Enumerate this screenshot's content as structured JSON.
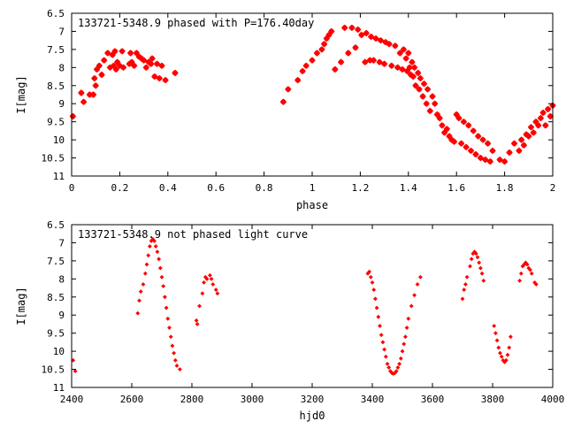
{
  "colors": {
    "marker": "#ff0000",
    "axis": "#000000",
    "background": "#ffffff"
  },
  "chart_data": [
    {
      "type": "scatter",
      "title": "133721-5348.9 phased with P=176.40day",
      "xlabel": "phase",
      "ylabel": "I[mag]",
      "xlim": [
        0,
        2
      ],
      "ylim": [
        11,
        6.5
      ],
      "y_inverted": true,
      "grid": false,
      "marker": "filled-star",
      "xticks": [
        0,
        0.2,
        0.4,
        0.6,
        0.8,
        1,
        1.2,
        1.4,
        1.6,
        1.8,
        2
      ],
      "xtick_labels": [
        "0",
        "0.2",
        "0.4",
        "0.6",
        "0.8",
        "1",
        "1.2",
        "1.4",
        "1.6",
        "1.8",
        "2"
      ],
      "yticks": [
        6.5,
        7,
        7.5,
        8,
        8.5,
        9,
        9.5,
        10,
        10.5,
        11
      ],
      "ytick_labels": [
        "6.5",
        "7",
        "7.5",
        "8",
        "8.5",
        "9",
        "9.5",
        "10",
        "10.5",
        "11"
      ],
      "series": [
        {
          "points": [
            [
              0.005,
              9.35
            ],
            [
              0.04,
              8.7
            ],
            [
              0.05,
              8.95
            ],
            [
              0.075,
              8.75
            ],
            [
              0.09,
              8.75
            ],
            [
              0.095,
              8.3
            ],
            [
              0.1,
              8.5
            ],
            [
              0.105,
              8.05
            ],
            [
              0.115,
              7.95
            ],
            [
              0.125,
              8.2
            ],
            [
              0.135,
              7.8
            ],
            [
              0.15,
              7.6
            ],
            [
              0.16,
              8.0
            ],
            [
              0.17,
              7.65
            ],
            [
              0.175,
              7.95
            ],
            [
              0.18,
              7.55
            ],
            [
              0.185,
              8.05
            ],
            [
              0.19,
              7.85
            ],
            [
              0.2,
              7.95
            ],
            [
              0.21,
              7.55
            ],
            [
              0.215,
              8.0
            ],
            [
              0.24,
              7.9
            ],
            [
              0.245,
              7.6
            ],
            [
              0.25,
              7.85
            ],
            [
              0.26,
              7.95
            ],
            [
              0.27,
              7.6
            ],
            [
              0.28,
              7.7
            ],
            [
              0.29,
              7.75
            ],
            [
              0.3,
              7.8
            ],
            [
              0.31,
              8.0
            ],
            [
              0.32,
              7.85
            ],
            [
              0.33,
              7.9
            ],
            [
              0.335,
              7.75
            ],
            [
              0.345,
              8.25
            ],
            [
              0.355,
              7.9
            ],
            [
              0.365,
              8.3
            ],
            [
              0.375,
              7.95
            ],
            [
              0.39,
              8.35
            ],
            [
              0.43,
              8.15
            ],
            [
              0.88,
              8.95
            ],
            [
              0.9,
              8.6
            ],
            [
              0.94,
              8.35
            ],
            [
              0.96,
              8.1
            ],
            [
              0.975,
              7.95
            ],
            [
              1.0,
              7.8
            ],
            [
              1.02,
              7.6
            ],
            [
              1.04,
              7.5
            ],
            [
              1.05,
              7.35
            ],
            [
              1.06,
              7.2
            ],
            [
              1.07,
              7.1
            ],
            [
              1.08,
              7.0
            ],
            [
              1.095,
              8.05
            ],
            [
              1.12,
              7.85
            ],
            [
              1.135,
              6.9
            ],
            [
              1.15,
              7.6
            ],
            [
              1.165,
              6.9
            ],
            [
              1.18,
              7.45
            ],
            [
              1.19,
              6.95
            ],
            [
              1.205,
              7.1
            ],
            [
              1.22,
              7.85
            ],
            [
              1.225,
              7.05
            ],
            [
              1.24,
              7.8
            ],
            [
              1.245,
              7.15
            ],
            [
              1.255,
              7.8
            ],
            [
              1.265,
              7.2
            ],
            [
              1.28,
              7.85
            ],
            [
              1.285,
              7.25
            ],
            [
              1.3,
              7.9
            ],
            [
              1.305,
              7.3
            ],
            [
              1.32,
              7.35
            ],
            [
              1.33,
              7.95
            ],
            [
              1.345,
              7.4
            ],
            [
              1.355,
              8.0
            ],
            [
              1.365,
              7.6
            ],
            [
              1.375,
              8.05
            ],
            [
              1.38,
              7.5
            ],
            [
              1.39,
              7.75
            ],
            [
              1.395,
              8.1
            ],
            [
              1.4,
              7.6
            ],
            [
              1.405,
              8.0
            ],
            [
              1.41,
              8.2
            ],
            [
              1.415,
              7.85
            ],
            [
              1.42,
              8.25
            ],
            [
              1.425,
              8.0
            ],
            [
              1.43,
              8.5
            ],
            [
              1.44,
              8.15
            ],
            [
              1.445,
              8.6
            ],
            [
              1.45,
              8.3
            ],
            [
              1.46,
              8.8
            ],
            [
              1.465,
              8.45
            ],
            [
              1.475,
              9.0
            ],
            [
              1.48,
              8.6
            ],
            [
              1.49,
              9.2
            ],
            [
              1.5,
              8.8
            ],
            [
              1.51,
              9.0
            ],
            [
              1.52,
              9.3
            ],
            [
              1.53,
              9.4
            ],
            [
              1.54,
              9.6
            ],
            [
              1.55,
              9.8
            ],
            [
              1.56,
              9.7
            ],
            [
              1.57,
              9.9
            ],
            [
              1.58,
              10.0
            ],
            [
              1.59,
              10.05
            ],
            [
              1.6,
              9.3
            ],
            [
              1.61,
              9.4
            ],
            [
              1.62,
              10.1
            ],
            [
              1.63,
              9.5
            ],
            [
              1.64,
              10.2
            ],
            [
              1.65,
              9.6
            ],
            [
              1.66,
              10.3
            ],
            [
              1.67,
              9.75
            ],
            [
              1.68,
              10.4
            ],
            [
              1.69,
              9.9
            ],
            [
              1.7,
              10.5
            ],
            [
              1.71,
              10.0
            ],
            [
              1.72,
              10.55
            ],
            [
              1.73,
              10.1
            ],
            [
              1.74,
              10.6
            ],
            [
              1.75,
              10.3
            ],
            [
              1.78,
              10.55
            ],
            [
              1.8,
              10.6
            ],
            [
              1.82,
              10.35
            ],
            [
              1.84,
              10.1
            ],
            [
              1.86,
              10.3
            ],
            [
              1.87,
              10.0
            ],
            [
              1.88,
              10.15
            ],
            [
              1.89,
              9.85
            ],
            [
              1.9,
              9.9
            ],
            [
              1.91,
              9.65
            ],
            [
              1.92,
              9.8
            ],
            [
              1.93,
              9.5
            ],
            [
              1.94,
              9.6
            ],
            [
              1.95,
              9.4
            ],
            [
              1.96,
              9.25
            ],
            [
              1.97,
              9.6
            ],
            [
              1.98,
              9.15
            ],
            [
              1.99,
              9.35
            ],
            [
              2.0,
              9.05
            ]
          ]
        }
      ]
    },
    {
      "type": "scatter",
      "title": "133721-5348.9 not phased light curve",
      "xlabel": "hjd0",
      "ylabel": "I[mag]",
      "xlim": [
        2400,
        4000
      ],
      "ylim": [
        11,
        6.5
      ],
      "y_inverted": true,
      "grid": false,
      "marker": "small-diamond",
      "xticks": [
        2400,
        2600,
        2800,
        3000,
        3200,
        3400,
        3600,
        3800,
        4000
      ],
      "xtick_labels": [
        "2400",
        "2600",
        "2800",
        "3000",
        "3200",
        "3400",
        "3600",
        "3800",
        "4000"
      ],
      "yticks": [
        6.5,
        7,
        7.5,
        8,
        8.5,
        9,
        9.5,
        10,
        10.5,
        11
      ],
      "ytick_labels": [
        "6.5",
        "7",
        "7.5",
        "8",
        "8.5",
        "9",
        "9.5",
        "10",
        "10.5",
        "11"
      ],
      "series": [
        {
          "points": [
            [
              2405,
              10.25
            ],
            [
              2412,
              10.55
            ],
            [
              2620,
              8.95
            ],
            [
              2625,
              8.6
            ],
            [
              2630,
              8.35
            ],
            [
              2638,
              8.15
            ],
            [
              2645,
              7.85
            ],
            [
              2650,
              7.6
            ],
            [
              2655,
              7.35
            ],
            [
              2660,
              7.1
            ],
            [
              2665,
              6.95
            ],
            [
              2670,
              6.9
            ],
            [
              2675,
              6.95
            ],
            [
              2680,
              7.1
            ],
            [
              2685,
              7.25
            ],
            [
              2690,
              7.45
            ],
            [
              2695,
              7.7
            ],
            [
              2700,
              7.95
            ],
            [
              2705,
              8.2
            ],
            [
              2710,
              8.5
            ],
            [
              2715,
              8.8
            ],
            [
              2720,
              9.1
            ],
            [
              2725,
              9.35
            ],
            [
              2730,
              9.6
            ],
            [
              2735,
              9.85
            ],
            [
              2740,
              10.05
            ],
            [
              2745,
              10.25
            ],
            [
              2750,
              10.4
            ],
            [
              2760,
              10.5
            ],
            [
              2815,
              9.15
            ],
            [
              2818,
              9.25
            ],
            [
              2825,
              8.75
            ],
            [
              2835,
              8.4
            ],
            [
              2840,
              8.1
            ],
            [
              2845,
              7.95
            ],
            [
              2850,
              8.0
            ],
            [
              2860,
              7.9
            ],
            [
              2865,
              8.0
            ],
            [
              2870,
              8.15
            ],
            [
              2880,
              8.3
            ],
            [
              2885,
              8.4
            ],
            [
              3385,
              7.85
            ],
            [
              3390,
              7.8
            ],
            [
              3395,
              7.95
            ],
            [
              3400,
              8.1
            ],
            [
              3405,
              8.3
            ],
            [
              3410,
              8.55
            ],
            [
              3415,
              8.8
            ],
            [
              3420,
              9.05
            ],
            [
              3425,
              9.3
            ],
            [
              3430,
              9.55
            ],
            [
              3435,
              9.75
            ],
            [
              3440,
              9.95
            ],
            [
              3445,
              10.15
            ],
            [
              3450,
              10.35
            ],
            [
              3455,
              10.45
            ],
            [
              3460,
              10.55
            ],
            [
              3465,
              10.6
            ],
            [
              3470,
              10.62
            ],
            [
              3475,
              10.6
            ],
            [
              3480,
              10.55
            ],
            [
              3485,
              10.45
            ],
            [
              3490,
              10.35
            ],
            [
              3495,
              10.2
            ],
            [
              3500,
              10.0
            ],
            [
              3505,
              9.8
            ],
            [
              3510,
              9.6
            ],
            [
              3515,
              9.35
            ],
            [
              3520,
              9.1
            ],
            [
              3530,
              8.75
            ],
            [
              3540,
              8.45
            ],
            [
              3550,
              8.15
            ],
            [
              3560,
              7.95
            ],
            [
              3700,
              8.55
            ],
            [
              3705,
              8.3
            ],
            [
              3710,
              8.15
            ],
            [
              3715,
              7.95
            ],
            [
              3725,
              7.65
            ],
            [
              3730,
              7.45
            ],
            [
              3735,
              7.3
            ],
            [
              3740,
              7.25
            ],
            [
              3745,
              7.3
            ],
            [
              3750,
              7.4
            ],
            [
              3755,
              7.55
            ],
            [
              3760,
              7.7
            ],
            [
              3765,
              7.85
            ],
            [
              3770,
              8.05
            ],
            [
              3805,
              9.3
            ],
            [
              3810,
              9.5
            ],
            [
              3815,
              9.7
            ],
            [
              3820,
              9.9
            ],
            [
              3825,
              10.05
            ],
            [
              3830,
              10.15
            ],
            [
              3835,
              10.25
            ],
            [
              3840,
              10.3
            ],
            [
              3845,
              10.25
            ],
            [
              3850,
              10.1
            ],
            [
              3855,
              9.9
            ],
            [
              3860,
              9.6
            ],
            [
              3890,
              8.05
            ],
            [
              3895,
              7.85
            ],
            [
              3900,
              7.65
            ],
            [
              3905,
              7.6
            ],
            [
              3910,
              7.55
            ],
            [
              3915,
              7.6
            ],
            [
              3920,
              7.7
            ],
            [
              3925,
              7.75
            ],
            [
              3930,
              7.85
            ],
            [
              3940,
              8.1
            ],
            [
              3945,
              8.15
            ]
          ]
        }
      ]
    }
  ]
}
